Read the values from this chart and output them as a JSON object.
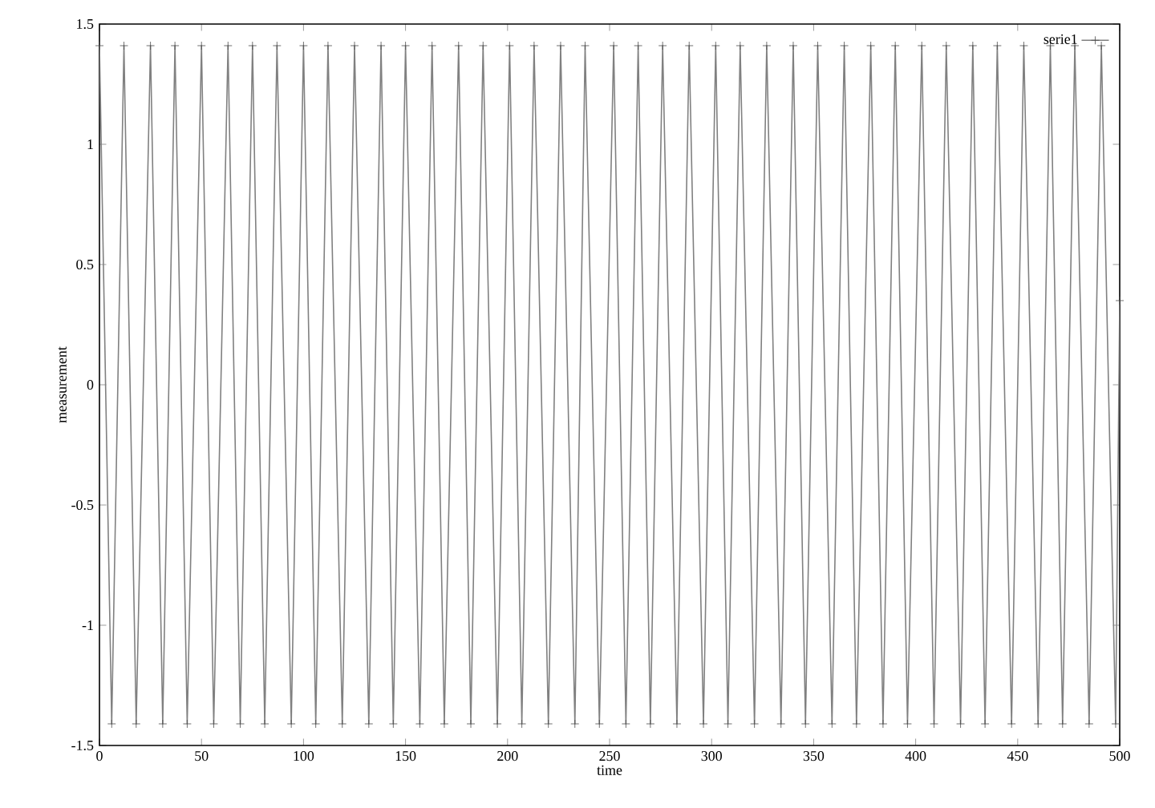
{
  "chart_data": {
    "type": "line",
    "xlabel": "time",
    "ylabel": "measurement",
    "x": [
      0,
      6,
      12,
      18,
      25,
      31,
      37,
      43,
      50,
      56,
      63,
      69,
      75,
      81,
      87,
      94,
      100,
      106,
      112,
      119,
      125,
      132,
      138,
      144,
      150,
      157,
      163,
      169,
      176,
      182,
      188,
      195,
      201,
      207,
      213,
      220,
      226,
      233,
      238,
      245,
      252,
      258,
      264,
      270,
      276,
      283,
      289,
      296,
      302,
      308,
      314,
      321,
      327,
      334,
      340,
      346,
      352,
      359,
      365,
      371,
      378,
      384,
      390,
      396,
      403,
      409,
      415,
      422,
      428,
      434,
      440,
      447,
      453,
      460,
      466,
      472,
      478,
      485,
      491,
      498,
      500
    ],
    "series": [
      {
        "name": "serie1",
        "color": "#808080",
        "values": [
          1.41,
          -1.41,
          1.41,
          -1.41,
          1.41,
          -1.41,
          1.41,
          -1.41,
          1.41,
          -1.41,
          1.41,
          -1.41,
          1.41,
          -1.41,
          1.41,
          -1.41,
          1.41,
          -1.41,
          1.41,
          -1.41,
          1.41,
          -1.41,
          1.41,
          -1.41,
          1.41,
          -1.41,
          1.41,
          -1.41,
          1.41,
          -1.41,
          1.41,
          -1.41,
          1.41,
          -1.41,
          1.41,
          -1.41,
          1.41,
          -1.41,
          1.41,
          -1.41,
          1.41,
          -1.41,
          1.41,
          -1.41,
          1.41,
          -1.41,
          1.41,
          -1.41,
          1.41,
          -1.41,
          1.41,
          -1.41,
          1.41,
          -1.41,
          1.41,
          -1.41,
          1.41,
          -1.41,
          1.41,
          -1.41,
          1.41,
          -1.41,
          1.41,
          -1.41,
          1.41,
          -1.41,
          1.41,
          -1.41,
          1.41,
          -1.41,
          1.41,
          -1.41,
          1.41,
          -1.41,
          1.41,
          -1.41,
          1.41,
          -1.41,
          1.41,
          -1.41,
          0.35
        ]
      }
    ],
    "xlim": [
      0,
      500
    ],
    "ylim": [
      -1.5,
      1.5
    ],
    "xticks": [
      0,
      50,
      100,
      150,
      200,
      250,
      300,
      350,
      400,
      450,
      500
    ],
    "yticks": [
      -1.5,
      -1,
      -0.5,
      0,
      0.5,
      1,
      1.5
    ],
    "marker": "cross",
    "line_style": "solid",
    "grid": false,
    "legend": "top right"
  }
}
